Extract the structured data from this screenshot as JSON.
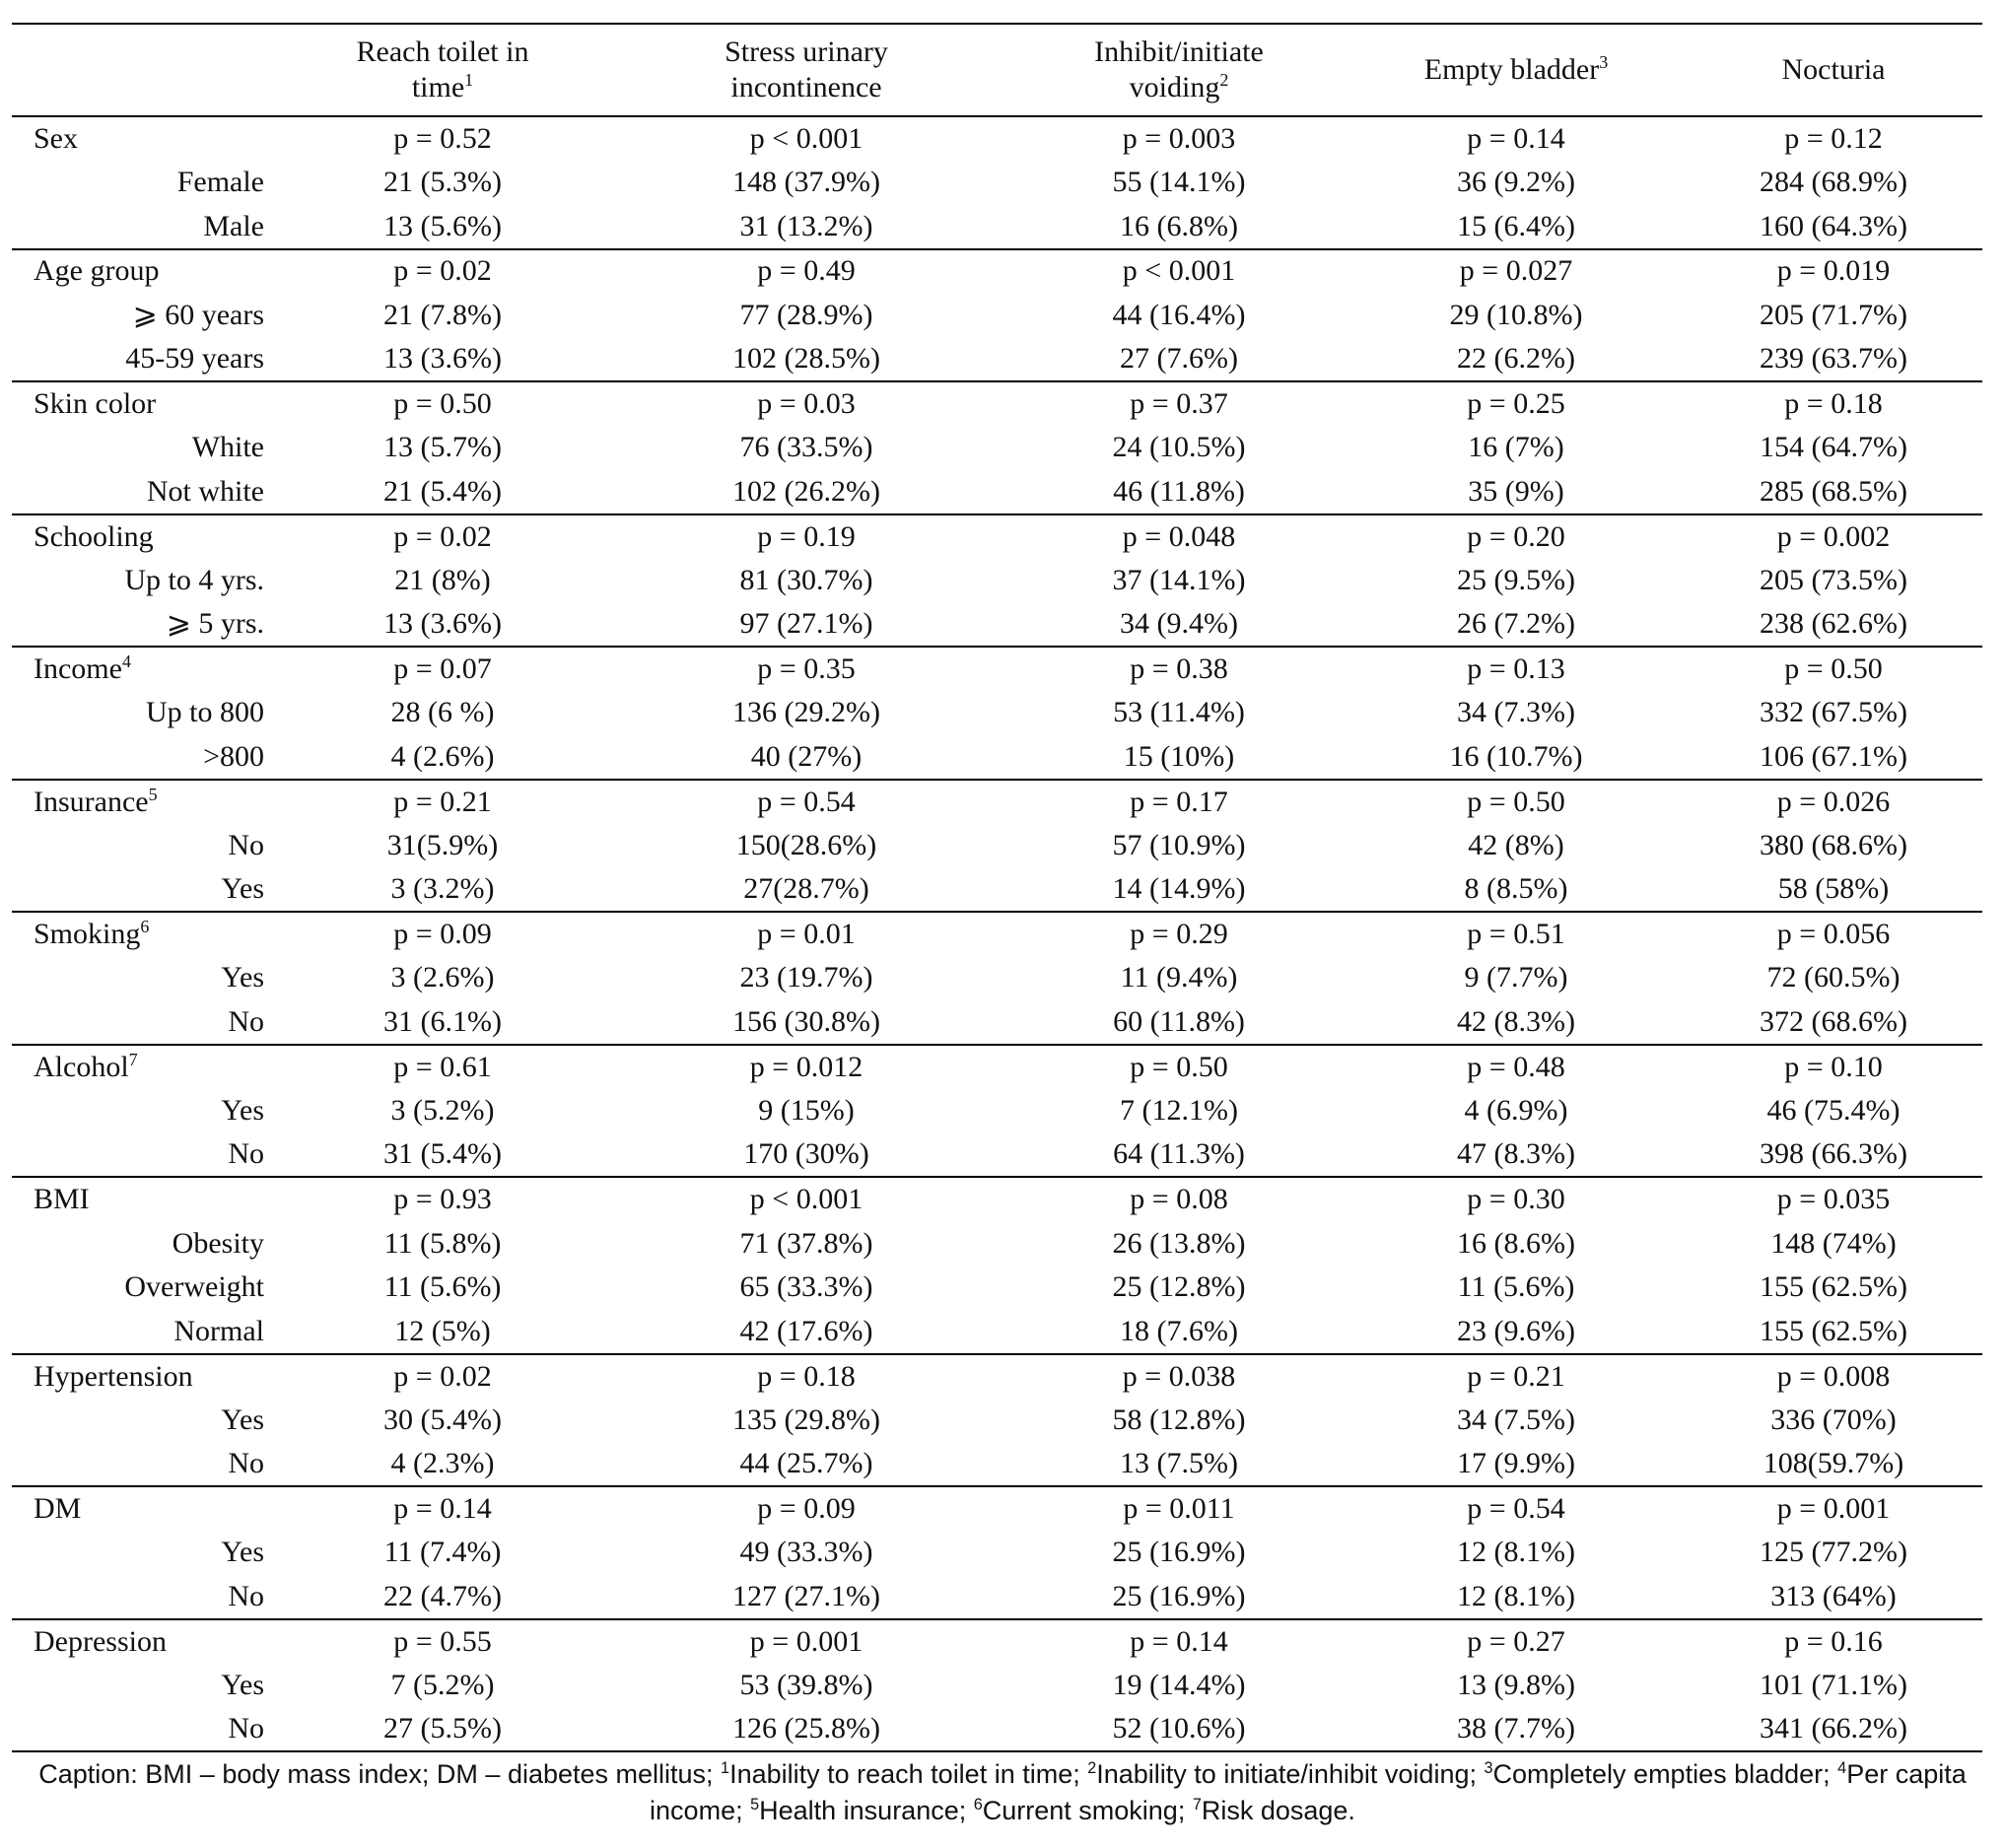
{
  "header": {
    "columns": [
      {
        "text": "Reach toilet in time",
        "sup": "1"
      },
      {
        "text": "Stress urinary incontinence"
      },
      {
        "text": "Inhibit/initiate voiding",
        "sup": "2"
      },
      {
        "text": "Empty bladder",
        "sup": "3"
      },
      {
        "text": "Nocturia"
      }
    ]
  },
  "groups": [
    {
      "label": "Sex",
      "p": [
        "p = 0.52",
        "p < 0.001",
        "p = 0.003",
        "p = 0.14",
        "p = 0.12"
      ],
      "rows": [
        {
          "label": "Female",
          "cells": [
            "21 (5.3%)",
            "148 (37.9%)",
            "55 (14.1%)",
            "36 (9.2%)",
            "284 (68.9%)"
          ]
        },
        {
          "label": "Male",
          "cells": [
            "13 (5.6%)",
            "31 (13.2%)",
            "16 (6.8%)",
            "15 (6.4%)",
            "160 (64.3%)"
          ]
        }
      ]
    },
    {
      "label": "Age group",
      "p": [
        "p = 0.02",
        "p = 0.49",
        "p < 0.001",
        "p = 0.027",
        "p = 0.019"
      ],
      "rows": [
        {
          "label": "⩾ 60 years",
          "cells": [
            "21 (7.8%)",
            "77 (28.9%)",
            "44 (16.4%)",
            "29 (10.8%)",
            "205 (71.7%)"
          ]
        },
        {
          "label": "45-59 years",
          "cells": [
            "13 (3.6%)",
            "102 (28.5%)",
            "27 (7.6%)",
            "22 (6.2%)",
            "239 (63.7%)"
          ]
        }
      ]
    },
    {
      "label": "Skin color",
      "p": [
        "p = 0.50",
        "p = 0.03",
        "p = 0.37",
        "p = 0.25",
        "p = 0.18"
      ],
      "rows": [
        {
          "label": "White",
          "cells": [
            "13 (5.7%)",
            "76 (33.5%)",
            "24 (10.5%)",
            "16 (7%)",
            "154 (64.7%)"
          ]
        },
        {
          "label": "Not white",
          "cells": [
            "21 (5.4%)",
            "102 (26.2%)",
            "46 (11.8%)",
            "35 (9%)",
            "285 (68.5%)"
          ]
        }
      ]
    },
    {
      "label": "Schooling",
      "p": [
        "p = 0.02",
        "p = 0.19",
        "p = 0.048",
        "p = 0.20",
        "p = 0.002"
      ],
      "rows": [
        {
          "label": "Up to 4 yrs.",
          "cells": [
            "21 (8%)",
            "81 (30.7%)",
            "37 (14.1%)",
            "25 (9.5%)",
            "205 (73.5%)"
          ]
        },
        {
          "label": "⩾ 5 yrs.",
          "cells": [
            "13 (3.6%)",
            "97 (27.1%)",
            "34 (9.4%)",
            "26 (7.2%)",
            "238 (62.6%)"
          ]
        }
      ]
    },
    {
      "label": "Income",
      "sup": "4",
      "p": [
        "p = 0.07",
        "p = 0.35",
        "p = 0.38",
        "p = 0.13",
        "p = 0.50"
      ],
      "rows": [
        {
          "label": "Up to 800",
          "cells": [
            "28 (6 %)",
            "136 (29.2%)",
            "53 (11.4%)",
            "34 (7.3%)",
            "332 (67.5%)"
          ]
        },
        {
          "label": ">800",
          "cells": [
            "4 (2.6%)",
            "40 (27%)",
            "15 (10%)",
            "16 (10.7%)",
            "106 (67.1%)"
          ]
        }
      ]
    },
    {
      "label": "Insurance",
      "sup": "5",
      "p": [
        "p = 0.21",
        "p = 0.54",
        "p = 0.17",
        "p = 0.50",
        "p = 0.026"
      ],
      "rows": [
        {
          "label": "No",
          "cells": [
            "31(5.9%)",
            "150(28.6%)",
            "57 (10.9%)",
            "42 (8%)",
            "380 (68.6%)"
          ]
        },
        {
          "label": "Yes",
          "cells": [
            "3 (3.2%)",
            "27(28.7%)",
            "14 (14.9%)",
            "8 (8.5%)",
            "58 (58%)"
          ]
        }
      ]
    },
    {
      "label": "Smoking",
      "sup": "6",
      "p": [
        "p = 0.09",
        "p = 0.01",
        "p = 0.29",
        "p = 0.51",
        "p = 0.056"
      ],
      "rows": [
        {
          "label": "Yes",
          "cells": [
            "3 (2.6%)",
            "23 (19.7%)",
            "11 (9.4%)",
            "9 (7.7%)",
            "72 (60.5%)"
          ]
        },
        {
          "label": "No",
          "cells": [
            "31 (6.1%)",
            "156 (30.8%)",
            "60 (11.8%)",
            "42 (8.3%)",
            "372 (68.6%)"
          ]
        }
      ]
    },
    {
      "label": "Alcohol",
      "sup": "7",
      "p": [
        "p = 0.61",
        "p = 0.012",
        "p = 0.50",
        "p = 0.48",
        "p = 0.10"
      ],
      "rows": [
        {
          "label": "Yes",
          "cells": [
            "3 (5.2%)",
            "9 (15%)",
            "7 (12.1%)",
            "4 (6.9%)",
            "46 (75.4%)"
          ]
        },
        {
          "label": "No",
          "cells": [
            "31 (5.4%)",
            "170 (30%)",
            "64 (11.3%)",
            "47 (8.3%)",
            "398 (66.3%)"
          ]
        }
      ]
    },
    {
      "label": "BMI",
      "p": [
        "p = 0.93",
        "p < 0.001",
        "p = 0.08",
        "p = 0.30",
        "p = 0.035"
      ],
      "rows": [
        {
          "label": "Obesity",
          "cells": [
            "11 (5.8%)",
            "71 (37.8%)",
            "26 (13.8%)",
            "16 (8.6%)",
            "148 (74%)"
          ]
        },
        {
          "label": "Overweight",
          "cells": [
            "11 (5.6%)",
            "65 (33.3%)",
            "25 (12.8%)",
            "11 (5.6%)",
            "155 (62.5%)"
          ]
        },
        {
          "label": "Normal",
          "cells": [
            "12 (5%)",
            "42 (17.6%)",
            "18 (7.6%)",
            "23 (9.6%)",
            "155 (62.5%)"
          ]
        }
      ]
    },
    {
      "label": "Hypertension",
      "p": [
        "p = 0.02",
        "p = 0.18",
        "p = 0.038",
        "p = 0.21",
        "p = 0.008"
      ],
      "rows": [
        {
          "label": "Yes",
          "cells": [
            "30 (5.4%)",
            "135 (29.8%)",
            "58 (12.8%)",
            "34 (7.5%)",
            "336 (70%)"
          ]
        },
        {
          "label": "No",
          "cells": [
            "4 (2.3%)",
            "44 (25.7%)",
            "13 (7.5%)",
            "17 (9.9%)",
            "108(59.7%)"
          ]
        }
      ]
    },
    {
      "label": "DM",
      "p": [
        "p = 0.14",
        "p = 0.09",
        "p = 0.011",
        "p = 0.54",
        "p = 0.001"
      ],
      "rows": [
        {
          "label": "Yes",
          "cells": [
            "11 (7.4%)",
            "49 (33.3%)",
            "25 (16.9%)",
            "12 (8.1%)",
            "125 (77.2%)"
          ]
        },
        {
          "label": "No",
          "cells": [
            "22 (4.7%)",
            "127 (27.1%)",
            "25 (16.9%)",
            "12 (8.1%)",
            "313 (64%)"
          ]
        }
      ]
    },
    {
      "label": "Depression",
      "p": [
        "p = 0.55",
        "p = 0.001",
        "p = 0.14",
        "p = 0.27",
        "p = 0.16"
      ],
      "rows": [
        {
          "label": "Yes",
          "cells": [
            "7 (5.2%)",
            "53 (39.8%)",
            "19 (14.4%)",
            "13 (9.8%)",
            "101 (71.1%)"
          ]
        },
        {
          "label": "No",
          "cells": [
            "27 (5.5%)",
            "126 (25.8%)",
            "52 (10.6%)",
            "38 (7.7%)",
            "341 (66.2%)"
          ]
        }
      ]
    }
  ],
  "caption": [
    {
      "text": "Caption: BMI – body mass index; DM – diabetes mellitus; "
    },
    {
      "sup": "1",
      "text": "Inability to reach toilet in time; "
    },
    {
      "sup": "2",
      "text": "Inability to initiate/inhibit voiding; "
    },
    {
      "sup": "3",
      "text": "Completely empties bladder; "
    },
    {
      "sup": "4",
      "text": "Per capita income; "
    },
    {
      "sup": "5",
      "text": "Health insurance; "
    },
    {
      "sup": "6",
      "text": "Current smoking; "
    },
    {
      "sup": "7",
      "text": "Risk dosage."
    }
  ]
}
